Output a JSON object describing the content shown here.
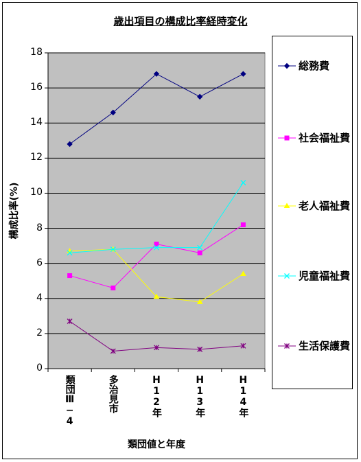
{
  "chart_data": {
    "type": "line",
    "title": "歳出項目の構成比率経時変化",
    "xlabel": "類団値と年度",
    "ylabel": "構成比率(%)",
    "categories": [
      "類団Ⅲ−4",
      "多治見市",
      "H12年",
      "H13年",
      "H14年"
    ],
    "ylim": [
      0,
      18
    ],
    "yticks": [
      "0",
      "2",
      "4",
      "6",
      "8",
      "10",
      "12",
      "14",
      "16",
      "18"
    ],
    "grid": true,
    "legend_position": "right",
    "plot_background": "#c0c0c0",
    "series": [
      {
        "name": "総務費",
        "color": "#000080",
        "marker": "diamond",
        "values": [
          12.8,
          14.6,
          16.8,
          15.5,
          16.8
        ]
      },
      {
        "name": "社会福祉費",
        "color": "#ff00ff",
        "marker": "square",
        "values": [
          5.3,
          4.6,
          7.1,
          6.6,
          8.2
        ]
      },
      {
        "name": "老人福祉費",
        "color": "#ffff00",
        "marker": "triangle",
        "values": [
          6.7,
          6.8,
          4.1,
          3.8,
          5.4
        ]
      },
      {
        "name": "児童福祉費",
        "color": "#00ffff",
        "marker": "x",
        "values": [
          6.6,
          6.8,
          6.9,
          6.9,
          10.6
        ]
      },
      {
        "name": "生活保護費",
        "color": "#800080",
        "marker": "star",
        "values": [
          2.7,
          1.0,
          1.2,
          1.1,
          1.3
        ]
      }
    ]
  }
}
